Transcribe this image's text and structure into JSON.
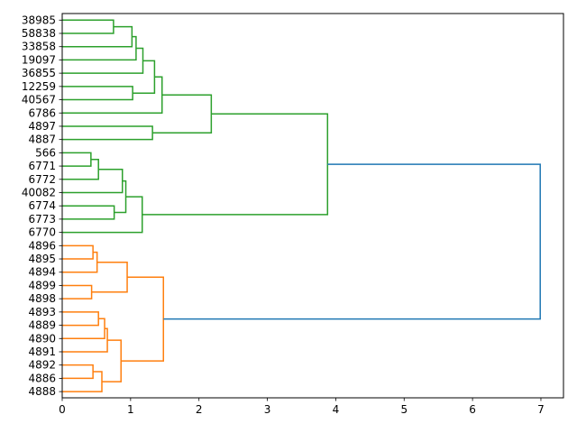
{
  "chart_data": {
    "type": "dendrogram",
    "orientation": "right",
    "title": "",
    "xlabel": "",
    "ylabel": "",
    "xlim": [
      0,
      7.33
    ],
    "xticks": [
      0,
      1,
      2,
      3,
      4,
      5,
      6,
      7
    ],
    "leaves": [
      "38985",
      "58838",
      "33858",
      "19097",
      "36855",
      "12259",
      "40567",
      "6786",
      "4897",
      "4887",
      "566",
      "6771",
      "6772",
      "40082",
      "6774",
      "6773",
      "6770",
      "4896",
      "4895",
      "4894",
      "4899",
      "4898",
      "4893",
      "4889",
      "4890",
      "4891",
      "4892",
      "4886",
      "4888"
    ],
    "colors": {
      "green": "#2ca02c",
      "orange": "#ff7f0e",
      "blue": "#1f77b4"
    },
    "links": [
      {
        "left": 0,
        "right": 1,
        "height": 0.75,
        "color": "green"
      },
      {
        "left": "m0",
        "right": 2,
        "height": 1.02,
        "color": "green"
      },
      {
        "left": "m1",
        "right": 3,
        "height": 1.08,
        "color": "green"
      },
      {
        "left": "m2",
        "right": 4,
        "height": 1.18,
        "color": "green"
      },
      {
        "left": 5,
        "right": 6,
        "height": 1.03,
        "color": "green"
      },
      {
        "left": "m3",
        "right": "m4",
        "height": 1.35,
        "color": "green"
      },
      {
        "left": "m5",
        "right": 7,
        "height": 1.46,
        "color": "green"
      },
      {
        "left": 8,
        "right": 9,
        "height": 1.32,
        "color": "green"
      },
      {
        "left": "m6",
        "right": "m7",
        "height": 2.18,
        "color": "green"
      },
      {
        "left": 10,
        "right": 11,
        "height": 0.42,
        "color": "green"
      },
      {
        "left": "m9",
        "right": 12,
        "height": 0.53,
        "color": "green"
      },
      {
        "left": "m10",
        "right": 13,
        "height": 0.88,
        "color": "green"
      },
      {
        "left": 14,
        "right": 15,
        "height": 0.76,
        "color": "green"
      },
      {
        "left": "m11",
        "right": "m12",
        "height": 0.93,
        "color": "green"
      },
      {
        "left": "m13",
        "right": 16,
        "height": 1.17,
        "color": "green"
      },
      {
        "left": "m8",
        "right": "m14",
        "height": 3.88,
        "color": "green"
      },
      {
        "left": 17,
        "right": 18,
        "height": 0.45,
        "color": "orange"
      },
      {
        "left": "m16",
        "right": 19,
        "height": 0.51,
        "color": "orange"
      },
      {
        "left": 20,
        "right": 21,
        "height": 0.43,
        "color": "orange"
      },
      {
        "left": "m17",
        "right": "m18",
        "height": 0.95,
        "color": "orange"
      },
      {
        "left": 22,
        "right": 23,
        "height": 0.53,
        "color": "orange"
      },
      {
        "left": "m20",
        "right": 24,
        "height": 0.62,
        "color": "orange"
      },
      {
        "left": "m21",
        "right": 25,
        "height": 0.66,
        "color": "orange"
      },
      {
        "left": 26,
        "right": 27,
        "height": 0.45,
        "color": "orange"
      },
      {
        "left": "m23",
        "right": 28,
        "height": 0.58,
        "color": "orange"
      },
      {
        "left": "m22",
        "right": "m24",
        "height": 0.86,
        "color": "orange"
      },
      {
        "left": "m19",
        "right": "m25",
        "height": 1.48,
        "color": "orange"
      },
      {
        "left": "m15",
        "right": "m26",
        "height": 6.99,
        "color": "blue"
      }
    ]
  }
}
